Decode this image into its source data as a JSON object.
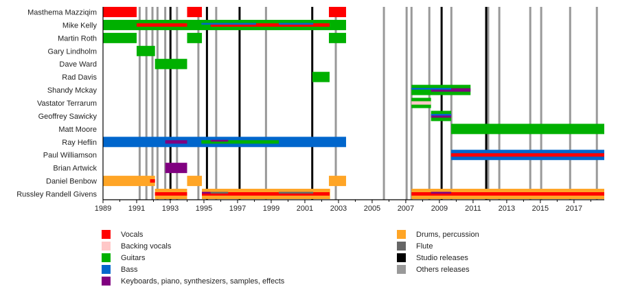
{
  "chart_data": {
    "type": "timeline",
    "title": "",
    "xlabel": "",
    "ylabel": "",
    "xlim": [
      1989,
      2018.8
    ],
    "grid": false,
    "legend_position": "bottom",
    "tick_labels": [
      "1989",
      "1991",
      "1993",
      "1995",
      "1997",
      "1999",
      "2001",
      "2003",
      "2005",
      "2007",
      "2009",
      "2011",
      "2013",
      "2015",
      "2017"
    ],
    "minor_ticks": "yearly",
    "colors": {
      "vocals": "#ff0000",
      "backing_vocals": "#ffc8c8",
      "guitars": "#00b000",
      "bass": "#0066cc",
      "keyboards": "#800080",
      "drums": "#ffa526",
      "flute": "#666666",
      "studio": "#000000",
      "other": "#999999"
    },
    "releases": {
      "studio": [
        1993.01,
        1995.18,
        1997.12,
        2001.44,
        2009.13,
        2011.78
      ],
      "other": [
        1991.18,
        1991.58,
        1991.94,
        1992.24,
        1992.7,
        1993.4,
        1994.67,
        1995.73,
        1998.69,
        2002.84,
        2005.7,
        2007.05,
        2007.34,
        2008.4,
        2009.71,
        2011.9,
        2012.56,
        2014.4,
        2015.05,
        2016.77,
        2018.36
      ]
    },
    "members": [
      {
        "name": "Masthema Mazziqim",
        "bars": [
          {
            "instrument": "vocals",
            "start": 1989,
            "end": 1991.0
          },
          {
            "instrument": "vocals",
            "start": 1994.0,
            "end": 1994.88
          },
          {
            "instrument": "vocals",
            "start": 2002.43,
            "end": 2003.45
          }
        ],
        "lines": []
      },
      {
        "name": "Mike Kelly",
        "bars": [
          {
            "instrument": "guitars",
            "start": 1989,
            "end": 2003.45
          }
        ],
        "lines": [
          {
            "instrument": "vocals",
            "start": 1991.0,
            "end": 1994.0
          },
          {
            "instrument": "vocals",
            "start": 1995.4,
            "end": 2002.47
          },
          {
            "instrument": "bass",
            "start": 1994.85,
            "end": 1998.1
          },
          {
            "instrument": "bass",
            "start": 1999.45,
            "end": 2001.5
          }
        ]
      },
      {
        "name": "Martin Roth",
        "bars": [
          {
            "instrument": "guitars",
            "start": 1989,
            "end": 1991.0
          },
          {
            "instrument": "guitars",
            "start": 1994.0,
            "end": 1994.88
          },
          {
            "instrument": "guitars",
            "start": 2002.43,
            "end": 2003.45
          }
        ],
        "lines": []
      },
      {
        "name": "Gary Lindholm",
        "bars": [
          {
            "instrument": "guitars",
            "start": 1991.0,
            "end": 1992.09
          }
        ],
        "lines": []
      },
      {
        "name": "Dave Ward",
        "bars": [
          {
            "instrument": "guitars",
            "start": 1992.09,
            "end": 1994.0
          }
        ],
        "lines": []
      },
      {
        "name": "Rad Davis",
        "bars": [
          {
            "instrument": "guitars",
            "start": 2001.45,
            "end": 2002.47
          }
        ],
        "lines": []
      },
      {
        "name": "Shandy Mckay",
        "bars": [
          {
            "instrument": "guitars",
            "start": 2007.34,
            "end": 2010.85
          }
        ],
        "lines": [
          {
            "instrument": "keyboards",
            "start": 2008.5,
            "end": 2010.85
          },
          {
            "instrument": "bass",
            "start": 2007.34,
            "end": 2009.7
          }
        ]
      },
      {
        "name": "Vastator Terrarum",
        "bars": [
          {
            "instrument": "guitars",
            "start": 2007.34,
            "end": 2008.5
          }
        ],
        "lines": [
          {
            "instrument": "backing_vocals",
            "start": 2007.34,
            "end": 2008.5
          }
        ]
      },
      {
        "name": "Geoffrey Sawicky",
        "bars": [
          {
            "instrument": "guitars",
            "start": 2008.5,
            "end": 2009.7
          }
        ],
        "lines": [
          {
            "instrument": "keyboards",
            "start": 2008.5,
            "end": 2009.7
          },
          {
            "instrument": "bass",
            "start": 2008.5,
            "end": 2009.7
          }
        ]
      },
      {
        "name": "Matt Moore",
        "bars": [
          {
            "instrument": "guitars",
            "start": 2009.7,
            "end": 2018.8
          }
        ],
        "lines": []
      },
      {
        "name": "Ray Heflin",
        "bars": [
          {
            "instrument": "bass",
            "start": 1989,
            "end": 2003.45
          }
        ],
        "lines": [
          {
            "instrument": "keyboards",
            "start": 1992.7,
            "end": 1994.0
          },
          {
            "instrument": "guitars",
            "start": 1994.85,
            "end": 1999.45
          },
          {
            "instrument": "keyboards",
            "start": 1995.4,
            "end": 1996.44
          }
        ]
      },
      {
        "name": "Paul Williamson",
        "bars": [
          {
            "instrument": "bass",
            "start": 2009.7,
            "end": 2018.8
          }
        ],
        "lines": [
          {
            "instrument": "vocals",
            "start": 2009.7,
            "end": 2018.8
          }
        ]
      },
      {
        "name": "Brian Artwick",
        "bars": [
          {
            "instrument": "keyboards",
            "start": 1992.7,
            "end": 1994.0
          }
        ],
        "lines": []
      },
      {
        "name": "Daniel Benbow",
        "bars": [
          {
            "instrument": "drums",
            "start": 1989,
            "end": 1992.09
          },
          {
            "instrument": "drums",
            "start": 1994.0,
            "end": 1994.88
          },
          {
            "instrument": "drums",
            "start": 2002.43,
            "end": 2003.45
          }
        ],
        "lines": [
          {
            "instrument": "vocals",
            "start": 1991.8,
            "end": 1992.09
          }
        ]
      },
      {
        "name": "Russley Randell Givens",
        "bars": [
          {
            "instrument": "drums",
            "start": 1992.09,
            "end": 1994.0
          },
          {
            "instrument": "drums",
            "start": 1994.88,
            "end": 2002.5
          },
          {
            "instrument": "drums",
            "start": 2007.34,
            "end": 2018.8
          }
        ],
        "lines": [
          {
            "instrument": "vocals",
            "start": 1992.09,
            "end": 1994.0
          },
          {
            "instrument": "vocals",
            "start": 1994.88,
            "end": 2002.47
          },
          {
            "instrument": "keyboards",
            "start": 1994.88,
            "end": 1995.4
          },
          {
            "instrument": "flute",
            "start": 1995.4,
            "end": 1996.44
          },
          {
            "instrument": "flute",
            "start": 1999.45,
            "end": 2001.5
          },
          {
            "instrument": "vocals",
            "start": 2007.34,
            "end": 2018.8
          },
          {
            "instrument": "guitars",
            "start": 2008.5,
            "end": 2009.7
          },
          {
            "instrument": "keyboards",
            "start": 2008.5,
            "end": 2009.7
          }
        ]
      }
    ]
  },
  "legend": {
    "left": [
      {
        "key": "vocals",
        "label": "Vocals"
      },
      {
        "key": "backing_vocals",
        "label": "Backing vocals"
      },
      {
        "key": "guitars",
        "label": "Guitars"
      },
      {
        "key": "bass",
        "label": "Bass"
      },
      {
        "key": "keyboards",
        "label": "Keyboards, piano, synthesizers, samples, effects"
      }
    ],
    "right": [
      {
        "key": "drums",
        "label": "Drums, percussion"
      },
      {
        "key": "flute",
        "label": "Flute"
      },
      {
        "key": "studio",
        "label": "Studio releases"
      },
      {
        "key": "other",
        "label": "Others releases"
      }
    ]
  }
}
